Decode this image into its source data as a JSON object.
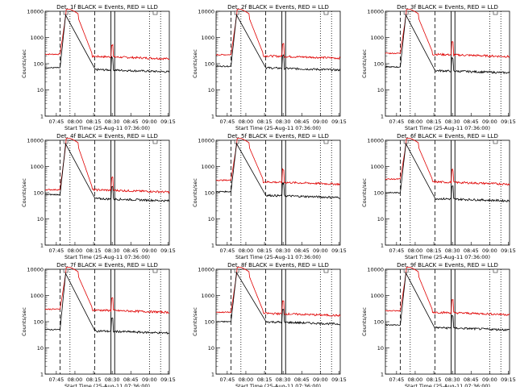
{
  "x_tick_labels": [
    "07:45",
    "08:00",
    "08:15",
    "08:30",
    "08:45",
    "09:00",
    "09:15"
  ],
  "y_tick_labels": [
    "1",
    "10",
    "100",
    "1000",
    "10000"
  ],
  "ylabel": "Counts/sec",
  "xlabel": "Start Time (25-Aug-11 07:36:00)",
  "colors": {
    "events": "#000000",
    "lld": "#e00000"
  },
  "chart_data": [
    {
      "type": "line",
      "title": "Det. 1f BLACK = Events, RED = LLD",
      "x_range_min": [
        0,
        100
      ],
      "yscale": "log",
      "ylim": [
        1,
        10000
      ],
      "events_level": 70,
      "lld_level": 230,
      "step_min": 27,
      "after_events": 60,
      "after_lld": 190
    },
    {
      "type": "line",
      "title": "Det. 2f BLACK = Events, RED = LLD",
      "x_range_min": [
        0,
        100
      ],
      "yscale": "log",
      "ylim": [
        1,
        10000
      ],
      "events_level": 80,
      "lld_level": 220,
      "step_min": 27,
      "after_events": 70,
      "after_lld": 200
    },
    {
      "type": "line",
      "title": "Det. 3f BLACK = Events, RED = LLD",
      "x_range_min": [
        0,
        100
      ],
      "yscale": "log",
      "ylim": [
        1,
        10000
      ],
      "events_level": 75,
      "lld_level": 250,
      "step_min": 27,
      "after_events": 55,
      "after_lld": 230
    },
    {
      "type": "line",
      "title": "Det. 4f BLACK = Events, RED = LLD",
      "x_range_min": [
        0,
        100
      ],
      "yscale": "log",
      "ylim": [
        1,
        10000
      ],
      "events_level": 85,
      "lld_level": 130,
      "step_min": 27,
      "after_events": 60,
      "after_lld": 130
    },
    {
      "type": "line",
      "title": "Det. 5f BLACK = Events, RED = LLD",
      "x_range_min": [
        0,
        100
      ],
      "yscale": "log",
      "ylim": [
        1,
        10000
      ],
      "events_level": 110,
      "lld_level": 300,
      "step_min": 27,
      "after_events": 80,
      "after_lld": 260
    },
    {
      "type": "line",
      "title": "Det. 6f BLACK = Events, RED = LLD",
      "x_range_min": [
        0,
        100
      ],
      "yscale": "log",
      "ylim": [
        1,
        10000
      ],
      "events_level": 100,
      "lld_level": 330,
      "step_min": 27,
      "after_events": 60,
      "after_lld": 260
    },
    {
      "type": "line",
      "title": "Det. 7f BLACK = Events, RED = LLD",
      "x_range_min": [
        0,
        100
      ],
      "yscale": "log",
      "ylim": [
        1,
        10000
      ],
      "events_level": 50,
      "lld_level": 300,
      "step_min": 27,
      "after_events": 45,
      "after_lld": 280
    },
    {
      "type": "line",
      "title": "Det. 8f BLACK = Events, RED = LLD",
      "x_range_min": [
        0,
        100
      ],
      "yscale": "log",
      "ylim": [
        1,
        10000
      ],
      "events_level": 100,
      "lld_level": 230,
      "step_min": 27,
      "after_events": 100,
      "after_lld": 210
    },
    {
      "type": "line",
      "title": "Det. 9f BLACK = Events, RED = LLD",
      "x_range_min": [
        0,
        100
      ],
      "yscale": "log",
      "ylim": [
        1,
        10000
      ],
      "events_level": 75,
      "lld_level": 260,
      "step_min": 27,
      "after_events": 60,
      "after_lld": 230
    }
  ]
}
